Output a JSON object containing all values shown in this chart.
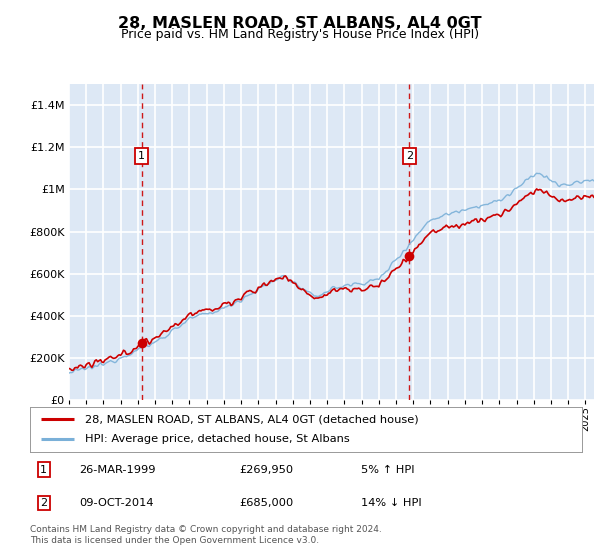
{
  "title": "28, MASLEN ROAD, ST ALBANS, AL4 0GT",
  "subtitle": "Price paid vs. HM Land Registry's House Price Index (HPI)",
  "legend_label1": "28, MASLEN ROAD, ST ALBANS, AL4 0GT (detached house)",
  "legend_label2": "HPI: Average price, detached house, St Albans",
  "transaction1": {
    "date": 1999.22,
    "price": 269950,
    "label": "1",
    "display_date": "26-MAR-1999",
    "display_price": "£269,950",
    "note": "5% ↑ HPI"
  },
  "transaction2": {
    "date": 2014.77,
    "price": 685000,
    "label": "2",
    "display_date": "09-OCT-2014",
    "display_price": "£685,000",
    "note": "14% ↓ HPI"
  },
  "footer": "Contains HM Land Registry data © Crown copyright and database right 2024.\nThis data is licensed under the Open Government Licence v3.0.",
  "ylim": [
    0,
    1500000
  ],
  "xlim": [
    1995.0,
    2025.5
  ],
  "plot_bg": "#dde8f5",
  "line_color_red": "#cc0000",
  "line_color_blue": "#7ab0d8",
  "grid_color": "#ffffff",
  "vline_color": "#cc0000",
  "fig_width": 6.0,
  "fig_height": 5.6
}
